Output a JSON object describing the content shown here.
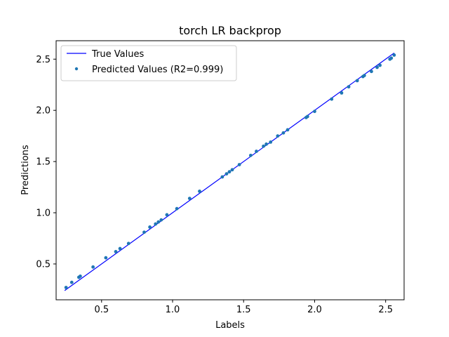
{
  "chart_data": {
    "type": "scatter",
    "title": "torch LR backprop",
    "xlabel": "Labels",
    "ylabel": "Predictions",
    "xlim": [
      0.18,
      2.63
    ],
    "ylim": [
      0.15,
      2.68
    ],
    "xticks": [
      "0.5",
      "1.0",
      "1.5",
      "2.0",
      "2.5"
    ],
    "yticks": [
      "0.5",
      "1.0",
      "1.5",
      "2.0",
      "2.5"
    ],
    "grid": false,
    "legend_position": "top-left",
    "series": [
      {
        "name": "True Values",
        "kind": "line",
        "color": "#0000ff",
        "x": [
          0.24,
          2.56
        ],
        "y": [
          0.24,
          2.56
        ]
      },
      {
        "name": "Predicted Values (R2=0.999)",
        "kind": "scatter",
        "color": "#1f77b4",
        "x": [
          0.25,
          0.29,
          0.34,
          0.35,
          0.44,
          0.53,
          0.6,
          0.63,
          0.69,
          0.8,
          0.84,
          0.88,
          0.9,
          0.92,
          0.96,
          1.03,
          1.12,
          1.19,
          1.35,
          1.38,
          1.4,
          1.42,
          1.47,
          1.55,
          1.59,
          1.64,
          1.66,
          1.69,
          1.74,
          1.78,
          1.81,
          1.94,
          1.95,
          2.0,
          2.12,
          2.19,
          2.24,
          2.3,
          2.34,
          2.35,
          2.4,
          2.44,
          2.46,
          2.53,
          2.54,
          2.56
        ],
        "y": [
          0.27,
          0.32,
          0.37,
          0.38,
          0.47,
          0.56,
          0.62,
          0.65,
          0.7,
          0.81,
          0.86,
          0.89,
          0.91,
          0.93,
          0.98,
          1.04,
          1.14,
          1.21,
          1.35,
          1.38,
          1.4,
          1.42,
          1.47,
          1.56,
          1.6,
          1.65,
          1.67,
          1.69,
          1.75,
          1.78,
          1.81,
          1.93,
          1.94,
          1.99,
          2.11,
          2.17,
          2.23,
          2.29,
          2.33,
          2.34,
          2.38,
          2.42,
          2.44,
          2.5,
          2.51,
          2.54
        ]
      }
    ]
  }
}
